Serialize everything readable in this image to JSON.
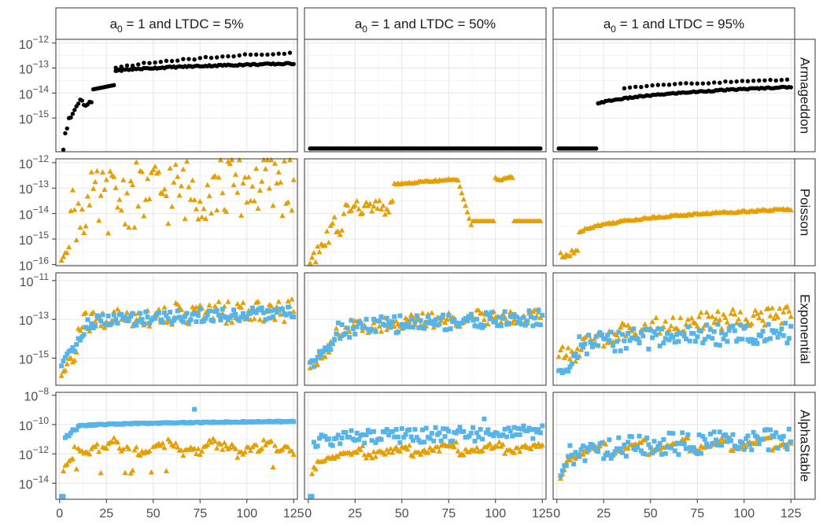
{
  "chart_data": {
    "type": "scatter",
    "x_axis": {
      "ticks": [
        0,
        25,
        50,
        75,
        100,
        125
      ],
      "tick_labels": [
        "0",
        "25",
        "50",
        "75",
        "100",
        "125"
      ],
      "range": [
        -2,
        127
      ]
    },
    "y_scale": "log10",
    "columns": [
      {
        "label_base": "a",
        "label_sub": "0",
        "label_rest": " = 1  and  LTDC = 5%"
      },
      {
        "label_base": "a",
        "label_sub": "0",
        "label_rest": " = 1  and  LTDC = 50%"
      },
      {
        "label_base": "a",
        "label_sub": "0",
        "label_rest": " = 1  and  LTDC = 95%"
      }
    ],
    "rows": [
      {
        "label": "Armageddon",
        "y_log_range": [
          -16.35,
          -11.85
        ],
        "y_ticks": [
          -15,
          -14,
          -13,
          -12
        ]
      },
      {
        "label": "Poisson",
        "y_log_range": [
          -16.05,
          -11.85
        ],
        "y_ticks": [
          -16,
          -15,
          -14,
          -13,
          -12
        ]
      },
      {
        "label": "Exponential",
        "y_log_range": [
          -16.4,
          -10.6
        ],
        "y_ticks": [
          -15,
          -13,
          -11
        ]
      },
      {
        "label": "AlphaStable",
        "y_log_range": [
          -15.1,
          -7.8
        ],
        "y_ticks": [
          -14,
          -12,
          -10,
          -8
        ]
      }
    ],
    "series_colors": {
      "black": "#000000",
      "orange": "#e69f00",
      "blue": "#56b4e9"
    },
    "series_note": "Per-point values are generated from piecewise trend descriptions below (log10 of y, x = index 1..125).",
    "panels": [
      {
        "row": 0,
        "col": 0,
        "series": [
          {
            "shape": "circle",
            "color": "#000000",
            "x_from": 2,
            "x_to": 125,
            "step": 1,
            "curve": "armA_low"
          },
          {
            "shape": "circle",
            "color": "#000000",
            "x_from": 30,
            "x_to": 125,
            "step": 3,
            "curve": "armA_high"
          }
        ]
      },
      {
        "row": 0,
        "col": 1,
        "series": [
          {
            "shape": "circle",
            "color": "#000000",
            "x_from": 1,
            "x_to": 124,
            "step": 1,
            "curve": "flat_bottom"
          }
        ]
      },
      {
        "row": 0,
        "col": 2,
        "series": [
          {
            "shape": "circle",
            "color": "#000000",
            "x_from": 1,
            "x_to": 21,
            "step": 1,
            "curve": "flat_bottom"
          },
          {
            "shape": "circle",
            "color": "#000000",
            "x_from": 22,
            "x_to": 125,
            "step": 1,
            "curve": "armC_low"
          },
          {
            "shape": "circle",
            "color": "#000000",
            "x_from": 36,
            "x_to": 124,
            "step": 3,
            "curve": "armC_high"
          }
        ]
      },
      {
        "row": 1,
        "col": 0,
        "series": [
          {
            "shape": "triangle",
            "color": "#e69f00",
            "x_from": 1,
            "x_to": 125,
            "step": 1,
            "curve": "poisA"
          }
        ]
      },
      {
        "row": 1,
        "col": 1,
        "series": [
          {
            "shape": "triangle",
            "color": "#e69f00",
            "x_from": 1,
            "x_to": 124,
            "step": 1,
            "curve": "poisB"
          }
        ]
      },
      {
        "row": 1,
        "col": 2,
        "series": [
          {
            "shape": "triangle",
            "color": "#e69f00",
            "x_from": 2,
            "x_to": 125,
            "step": 1,
            "curve": "poisC"
          }
        ]
      },
      {
        "row": 2,
        "col": 0,
        "series": [
          {
            "shape": "triangle",
            "color": "#e69f00",
            "x_from": 1,
            "x_to": 125,
            "step": 1,
            "curve": "expA_o"
          },
          {
            "shape": "square",
            "color": "#56b4e9",
            "x_from": 1,
            "x_to": 125,
            "step": 1,
            "curve": "expA_b"
          }
        ]
      },
      {
        "row": 2,
        "col": 1,
        "series": [
          {
            "shape": "triangle",
            "color": "#e69f00",
            "x_from": 1,
            "x_to": 125,
            "step": 1,
            "curve": "expB_o"
          },
          {
            "shape": "square",
            "color": "#56b4e9",
            "x_from": 1,
            "x_to": 125,
            "step": 1,
            "curve": "expB_b"
          }
        ]
      },
      {
        "row": 2,
        "col": 2,
        "series": [
          {
            "shape": "triangle",
            "color": "#e69f00",
            "x_from": 1,
            "x_to": 125,
            "step": 1,
            "curve": "expC_o"
          },
          {
            "shape": "square",
            "color": "#56b4e9",
            "x_from": 1,
            "x_to": 125,
            "step": 1,
            "curve": "expC_b"
          }
        ]
      },
      {
        "row": 3,
        "col": 0,
        "series": [
          {
            "shape": "triangle",
            "color": "#e69f00",
            "x_from": 2,
            "x_to": 125,
            "step": 1,
            "curve": "alpA_o"
          },
          {
            "shape": "square",
            "color": "#56b4e9",
            "x_from": 1,
            "x_to": 125,
            "step": 1,
            "curve": "alpA_b"
          }
        ]
      },
      {
        "row": 3,
        "col": 1,
        "series": [
          {
            "shape": "triangle",
            "color": "#e69f00",
            "x_from": 2,
            "x_to": 125,
            "step": 1,
            "curve": "alpB_o"
          },
          {
            "shape": "square",
            "color": "#56b4e9",
            "x_from": 1,
            "x_to": 125,
            "step": 1,
            "curve": "alpB_b"
          }
        ]
      },
      {
        "row": 3,
        "col": 2,
        "series": [
          {
            "shape": "triangle",
            "color": "#e69f00",
            "x_from": 2,
            "x_to": 125,
            "step": 1,
            "curve": "alpC_o"
          },
          {
            "shape": "square",
            "color": "#56b4e9",
            "x_from": 2,
            "x_to": 125,
            "step": 1,
            "curve": "alpC_b"
          }
        ]
      }
    ]
  }
}
